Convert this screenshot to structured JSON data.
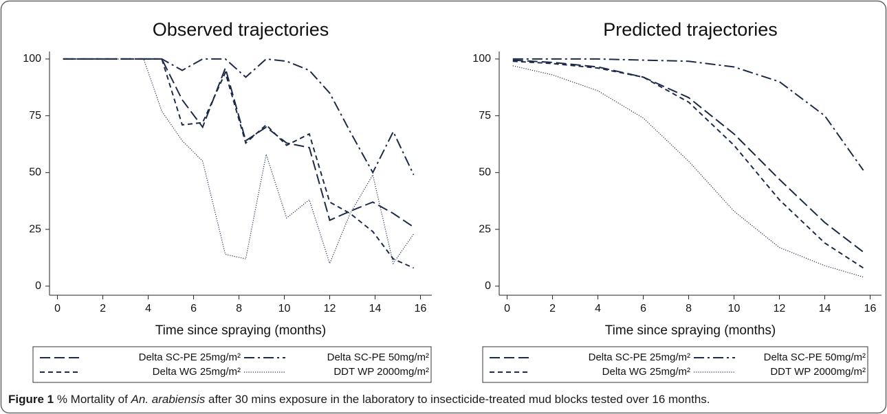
{
  "chart_data": [
    {
      "type": "line",
      "title": "Observed trajectories",
      "x_label": "Time since spraying (months)",
      "x": [
        0.25,
        3.8,
        4.6,
        5.5,
        6.4,
        7.4,
        8.3,
        9.2,
        10.1,
        11.1,
        12.0,
        12.9,
        13.9,
        14.8,
        15.7
      ],
      "series": [
        {
          "name": "Delta SC-PE 25mg/m²",
          "color": "#1c2a48",
          "line_style": "long-dash",
          "values": [
            100,
            100,
            100,
            82,
            70,
            96,
            64,
            70,
            63,
            61,
            29,
            33,
            37,
            32,
            26
          ]
        },
        {
          "name": "Delta SC-PE 50mg/m²",
          "color": "#1c2a48",
          "line_style": "dash-dot",
          "values": [
            100,
            100,
            100,
            95,
            100,
            100,
            92,
            100,
            99,
            95,
            85,
            68,
            50,
            68,
            49
          ]
        },
        {
          "name": "Delta WG 25mg/m²",
          "color": "#1c2a48",
          "line_style": "short-dash",
          "values": [
            100,
            100,
            100,
            71,
            72,
            94,
            63,
            71,
            62,
            67,
            37,
            32,
            24,
            12,
            8
          ]
        },
        {
          "name": "DDT WP 2000mg/m²",
          "color": "#1c2a48",
          "line_style": "dotted",
          "values": [
            100,
            100,
            77,
            64,
            55,
            14,
            12,
            58,
            30,
            38,
            10,
            32,
            49,
            10,
            23
          ]
        }
      ],
      "xlim": [
        -0.35,
        16.5
      ],
      "ylim": [
        -4,
        103.3
      ],
      "xticks": [
        0,
        2,
        4,
        6,
        8,
        10,
        12,
        14,
        16
      ],
      "yticks": [
        0,
        25,
        50,
        75,
        100
      ],
      "grid": false,
      "legend": "bottom"
    },
    {
      "type": "line",
      "title": "Predicted trajectories",
      "x_label": "Time since spraying (months)",
      "x": [
        0.25,
        2,
        4,
        6,
        8,
        10,
        12,
        14,
        15.7
      ],
      "series": [
        {
          "name": "Delta SC-PE 25mg/m²",
          "color": "#1c2a48",
          "line_style": "long-dash",
          "values": [
            99.5,
            98.5,
            96.5,
            92,
            83,
            67,
            47,
            28,
            15
          ]
        },
        {
          "name": "Delta SC-PE 50mg/m²",
          "color": "#1c2a48",
          "line_style": "dash-dot",
          "values": [
            100,
            100,
            100,
            99.5,
            99,
            96.5,
            90,
            75,
            51
          ]
        },
        {
          "name": "Delta WG 25mg/m²",
          "color": "#1c2a48",
          "line_style": "short-dash",
          "values": [
            99,
            98,
            96,
            92,
            81,
            62,
            38,
            19,
            8
          ]
        },
        {
          "name": "DDT WP 2000mg/m²",
          "color": "#1c2a48",
          "line_style": "dotted",
          "values": [
            97,
            93,
            86,
            74,
            55,
            33,
            17,
            9,
            4
          ]
        }
      ],
      "xlim": [
        -0.35,
        16.5
      ],
      "ylim": [
        -4,
        103.3
      ],
      "xticks": [
        0,
        2,
        4,
        6,
        8,
        10,
        12,
        14,
        16
      ],
      "yticks": [
        0,
        25,
        50,
        75,
        100
      ],
      "grid": false,
      "legend": "bottom"
    }
  ],
  "caption": [
    {
      "text": "Figure 1",
      "font": "bold"
    },
    {
      "text": " % Mortality of ",
      "font": "normal"
    },
    {
      "text": "An. arabiensis",
      "font": "italic"
    },
    {
      "text": " after 30 mins exposure in the laboratory to insecticide-treated mud blocks tested over 16 months.",
      "font": "normal"
    }
  ]
}
